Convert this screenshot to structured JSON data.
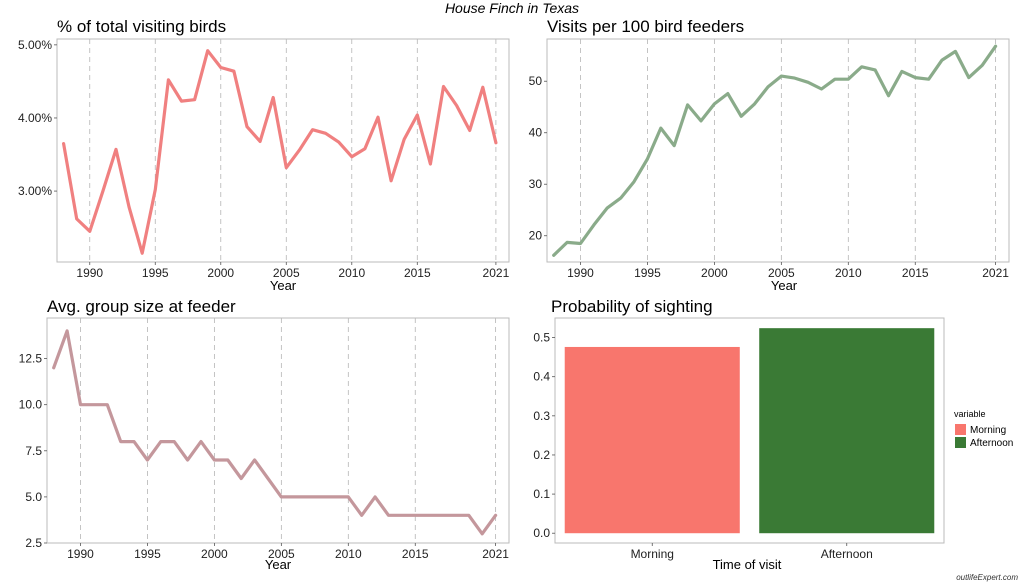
{
  "title": "House Finch in Texas",
  "watermark": "outlifeExpert.com",
  "chart_data": [
    {
      "type": "line",
      "title": "% of total visiting birds",
      "xlabel": "Year",
      "ylabel": "",
      "color": "#f08080",
      "x": [
        1988,
        1989,
        1990,
        1991,
        1992,
        1993,
        1994,
        1995,
        1996,
        1997,
        1998,
        1999,
        2000,
        2001,
        2002,
        2003,
        2004,
        2005,
        2006,
        2007,
        2008,
        2009,
        2010,
        2011,
        2012,
        2013,
        2014,
        2015,
        2016,
        2017,
        2018,
        2019,
        2020,
        2021
      ],
      "values": [
        3.65,
        2.62,
        2.45,
        3.0,
        3.57,
        2.78,
        2.15,
        3.02,
        4.52,
        4.23,
        4.25,
        4.92,
        4.69,
        4.64,
        3.88,
        3.68,
        4.28,
        3.32,
        3.56,
        3.84,
        3.79,
        3.67,
        3.47,
        3.58,
        4.01,
        3.14,
        3.71,
        4.04,
        3.37,
        4.43,
        4.17,
        3.83,
        4.42,
        3.66
      ],
      "xticks": [
        1990,
        1995,
        2000,
        2005,
        2010,
        2015,
        2021
      ],
      "yticks": [
        3.0,
        4.0,
        5.0
      ],
      "ytick_labels": [
        "3.00%",
        "4.00%",
        "5.00%"
      ],
      "xlim": [
        1987.5,
        2022
      ],
      "ylim": [
        2.03,
        5.08
      ],
      "grid": "vertical dashed"
    },
    {
      "type": "line",
      "title": "Visits per 100 bird feeders",
      "xlabel": "Year",
      "ylabel": "",
      "color": "#8aab8a",
      "x": [
        1988,
        1989,
        1990,
        1991,
        1992,
        1993,
        1994,
        1995,
        1996,
        1997,
        1998,
        1999,
        2000,
        2001,
        2002,
        2003,
        2004,
        2005,
        2006,
        2007,
        2008,
        2009,
        2010,
        2011,
        2012,
        2013,
        2014,
        2015,
        2016,
        2017,
        2018,
        2019,
        2020,
        2021
      ],
      "values": [
        16.2,
        18.7,
        18.5,
        22.1,
        25.4,
        27.3,
        30.5,
        34.9,
        40.9,
        37.5,
        45.4,
        42.3,
        45.6,
        47.6,
        43.2,
        45.6,
        48.9,
        51.0,
        50.6,
        49.8,
        48.5,
        50.4,
        50.4,
        52.8,
        52.2,
        47.2,
        51.9,
        50.7,
        50.4,
        54.1,
        55.8,
        50.7,
        53.1,
        56.8
      ],
      "xticks": [
        1990,
        1995,
        2000,
        2005,
        2010,
        2015,
        2021
      ],
      "yticks": [
        20,
        30,
        40,
        50
      ],
      "ytick_labels": [
        "20",
        "30",
        "40",
        "50"
      ],
      "xlim": [
        1987.5,
        2022
      ],
      "ylim": [
        14.9,
        58.2
      ],
      "grid": "vertical dashed"
    },
    {
      "type": "line",
      "title": "Avg. group size at feeder",
      "xlabel": "Year",
      "ylabel": "",
      "color": "#c4979c",
      "x": [
        1988,
        1989,
        1990,
        1991,
        1992,
        1993,
        1994,
        1995,
        1996,
        1997,
        1998,
        1999,
        2000,
        2001,
        2002,
        2003,
        2004,
        2005,
        2006,
        2007,
        2008,
        2009,
        2010,
        2011,
        2012,
        2013,
        2014,
        2015,
        2016,
        2017,
        2018,
        2019,
        2020,
        2021
      ],
      "values": [
        12,
        14,
        10,
        10,
        10,
        8,
        8,
        7,
        8,
        8,
        7,
        8,
        7,
        7,
        6,
        7,
        6,
        5,
        5,
        5,
        5,
        5,
        5,
        4,
        5,
        4,
        4,
        4,
        4,
        4,
        4,
        4,
        3,
        4
      ],
      "xticks": [
        1990,
        1995,
        2000,
        2005,
        2010,
        2015,
        2021
      ],
      "yticks": [
        2.5,
        5.0,
        7.5,
        10.0,
        12.5
      ],
      "ytick_labels": [
        "2.5",
        "5.0",
        "7.5",
        "10.0",
        "12.5"
      ],
      "xlim": [
        1987.5,
        2022
      ],
      "ylim": [
        2.5,
        14.7
      ],
      "grid": "vertical dashed"
    },
    {
      "type": "bar",
      "title": "Probability of sighting",
      "xlabel": "Time of visit",
      "ylabel": "",
      "categories": [
        "Morning",
        "Afternoon"
      ],
      "values": [
        0.476,
        0.524
      ],
      "colors": [
        "#f8766d",
        "#3a7a35"
      ],
      "yticks": [
        0.0,
        0.1,
        0.2,
        0.3,
        0.4,
        0.5
      ],
      "ytick_labels": [
        "0.0",
        "0.1",
        "0.2",
        "0.3",
        "0.4",
        "0.5"
      ],
      "ylim": [
        -0.025,
        0.55
      ],
      "legend": {
        "title": "variable",
        "entries": [
          "Morning",
          "Afternoon"
        ],
        "position": "right"
      }
    }
  ]
}
